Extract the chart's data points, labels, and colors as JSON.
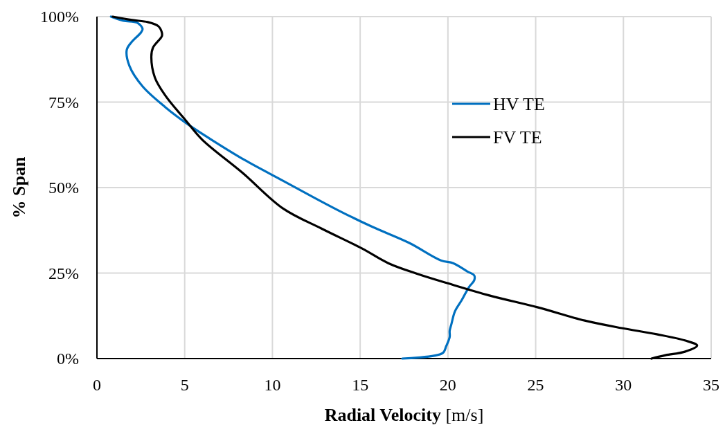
{
  "chart_data": {
    "type": "line",
    "xlabel": "Radial Velocity [m/s]",
    "ylabel": "% Span",
    "xlim": [
      0,
      35
    ],
    "xticks": [
      0,
      5,
      10,
      15,
      20,
      25,
      30,
      35
    ],
    "ylim": [
      0,
      100
    ],
    "yticks": [
      {
        "value": 0,
        "label": "0%"
      },
      {
        "value": 25,
        "label": "25%"
      },
      {
        "value": 50,
        "label": "50%"
      },
      {
        "value": 75,
        "label": "75%"
      },
      {
        "value": 100,
        "label": "100%"
      }
    ],
    "grid": true,
    "legend": "right",
    "line_style": "solid",
    "series": [
      {
        "name": "HV TE",
        "color": "#0070c0",
        "x": [
          17.4,
          19.7,
          19.9,
          20.1,
          20.1,
          20.2,
          20.4,
          20.8,
          21.2,
          21.5,
          21.5,
          21.1,
          20.3,
          19.6,
          17.8,
          15.7,
          14.0,
          12.4,
          10.6,
          8.4,
          6.4,
          5.1,
          3.9,
          2.6,
          1.85,
          1.7,
          2.0,
          2.5,
          2.6,
          2.3,
          1.5,
          0.8
        ],
        "values": [
          0,
          1.6,
          3.6,
          6.3,
          8.1,
          10.1,
          13.8,
          17.2,
          20.9,
          22.9,
          24.3,
          25.5,
          27.9,
          28.7,
          33.8,
          38.5,
          42.7,
          47,
          52,
          58.1,
          64.4,
          68.8,
          73.5,
          79.6,
          85.6,
          90.3,
          92.7,
          95.3,
          96.4,
          98.2,
          98.8,
          100
        ]
      },
      {
        "name": "FV TE",
        "color": "#000000",
        "x": [
          31.6,
          32.4,
          33.5,
          34.2,
          33.5,
          31.9,
          29.9,
          27.8,
          25.1,
          22.4,
          20.0,
          18.3,
          16.6,
          15.1,
          12.8,
          10.6,
          8.3,
          6.0,
          5.1,
          3.9,
          3.3,
          3.1,
          3.2,
          3.7,
          3.7,
          3.5,
          2.9,
          2.0,
          0.9
        ],
        "values": [
          0,
          1.0,
          2.0,
          3.8,
          5.3,
          7.1,
          8.9,
          11.1,
          15,
          18.4,
          22,
          24.7,
          27.9,
          32.2,
          38,
          43.9,
          54.3,
          64,
          69.4,
          76.9,
          82.2,
          88.3,
          91,
          94.3,
          95.3,
          97.2,
          98.4,
          99,
          100
        ]
      }
    ]
  }
}
